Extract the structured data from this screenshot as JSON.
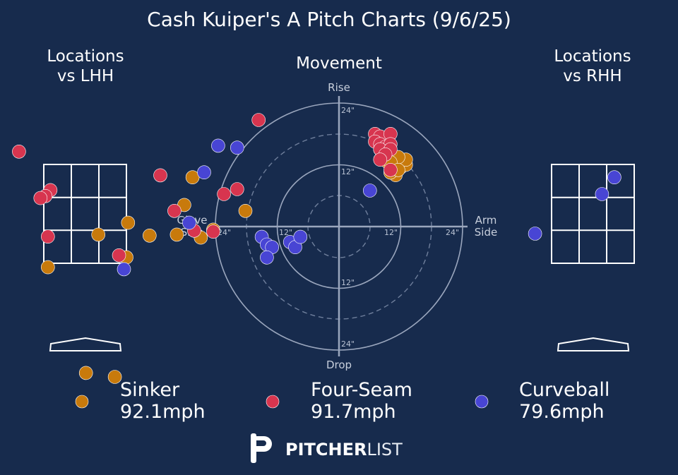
{
  "colors": {
    "background": "#172b4d",
    "sinker": "#c87a0c",
    "four_seam": "#d7354f",
    "curveball": "#4845d4",
    "zone_line": "#ffffff",
    "polar_line": "#8f9bb3"
  },
  "chart_data": [
    {
      "type": "scatter",
      "title": "Cash Kuiper's A Pitch Charts (9/6/25)",
      "subtitle": "Locations vs LHH",
      "title_line1": "Locations",
      "title_line2": "vs LHH",
      "units": "zone widths from plate center / zone heights",
      "series": [
        {
          "name": "Sinker",
          "points": [
            [
              1.94,
              0.53
            ],
            [
              0.52,
              0.41
            ],
            [
              0.16,
              0.29
            ],
            [
              0.5,
              0.06
            ],
            [
              1.3,
              0.87
            ],
            [
              -0.45,
              -0.04
            ],
            [
              0.01,
              -1.11
            ],
            [
              0.36,
              -1.15
            ],
            [
              1.2,
              0.59
            ],
            [
              1.4,
              0.26
            ],
            [
              1.55,
              0.34
            ],
            [
              0.78,
              0.28
            ],
            [
              1.11,
              0.29
            ]
          ]
        },
        {
          "name": "Four-Seam",
          "points": [
            [
              2.1,
              1.45
            ],
            [
              -0.8,
              1.13
            ],
            [
              -0.42,
              0.74
            ],
            [
              -0.48,
              0.68
            ],
            [
              -0.54,
              0.66
            ],
            [
              0.91,
              0.89
            ],
            [
              1.84,
              0.75
            ],
            [
              1.68,
              0.7
            ],
            [
              1.08,
              0.53
            ],
            [
              1.55,
              0.32
            ],
            [
              1.32,
              0.33
            ],
            [
              -0.45,
              0.27
            ],
            [
              0.41,
              0.08
            ]
          ]
        },
        {
          "name": "Curveball",
          "points": [
            [
              1.61,
              1.19
            ],
            [
              1.84,
              1.17
            ],
            [
              1.44,
              0.92
            ],
            [
              1.26,
              0.41
            ],
            [
              0.47,
              -0.06
            ]
          ]
        }
      ]
    },
    {
      "type": "scatter",
      "title": "Movement",
      "axis_labels": {
        "top": "Rise",
        "bottom": "Drop",
        "left_line1": "Glove",
        "left_line2": "Side",
        "right_line1": "Arm",
        "right_line2": "Side"
      },
      "rings": [
        "24\"",
        "12\""
      ],
      "range_inches": [
        -25,
        25
      ],
      "series": [
        {
          "name": "Sinker",
          "points": [
            [
              8,
              15
            ],
            [
              9,
              14
            ],
            [
              10,
              13
            ],
            [
              9.5,
              12.5
            ],
            [
              11,
              12
            ],
            [
              10.5,
              11
            ],
            [
              12,
              11.5
            ],
            [
              13,
              12
            ],
            [
              13,
              13
            ],
            [
              11.5,
              13.5
            ],
            [
              10,
              12.5
            ],
            [
              11,
              10
            ],
            [
              10,
              10.5
            ],
            [
              11.5,
              11
            ]
          ]
        },
        {
          "name": "Four-Seam",
          "points": [
            [
              7,
              18
            ],
            [
              8,
              17.5
            ],
            [
              10,
              18
            ],
            [
              7,
              16.5
            ],
            [
              8,
              16
            ],
            [
              9,
              15.5
            ],
            [
              10,
              16
            ],
            [
              8,
              15
            ],
            [
              10,
              15
            ],
            [
              9,
              14
            ],
            [
              8,
              13
            ],
            [
              10,
              11
            ]
          ]
        },
        {
          "name": "Curveball",
          "points": [
            [
              6,
              7
            ],
            [
              -15,
              -2
            ],
            [
              -14,
              -3.5
            ],
            [
              -13,
              -4
            ],
            [
              -9.5,
              -3
            ],
            [
              -8.5,
              -4
            ],
            [
              -7.5,
              -2
            ],
            [
              -14,
              -6
            ]
          ]
        }
      ]
    },
    {
      "type": "scatter",
      "title": "Locations vs RHH",
      "title_line1": "Locations",
      "title_line2": "vs RHH",
      "units": "zone widths from plate center / zone heights",
      "series": [
        {
          "name": "Sinker",
          "points": []
        },
        {
          "name": "Four-Seam",
          "points": []
        },
        {
          "name": "Curveball",
          "points": [
            [
              0.26,
              0.87
            ],
            [
              0.11,
              0.7
            ],
            [
              -0.7,
              0.3
            ]
          ]
        }
      ]
    }
  ],
  "legend": [
    {
      "name": "Sinker",
      "speed": "92.1mph",
      "color": "#c87a0c"
    },
    {
      "name": "Four-Seam",
      "speed": "91.7mph",
      "color": "#d7354f"
    },
    {
      "name": "Curveball",
      "speed": "79.6mph",
      "color": "#4845d4"
    }
  ],
  "logo": {
    "bold": "PITCHER",
    "light": "LIST"
  }
}
